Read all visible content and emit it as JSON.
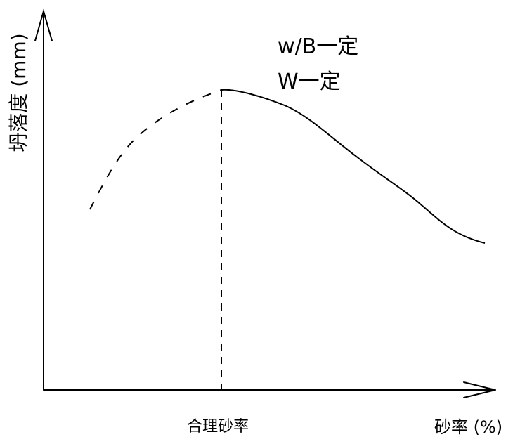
{
  "chart_data": {
    "type": "line",
    "title": "",
    "xlabel": "砂率 (%)",
    "ylabel": "坍落度 (mm)",
    "x_tick_labels": [
      "合理砂率"
    ],
    "annotations": [
      "w/B一定",
      "W一定"
    ],
    "grid": false,
    "legend": "none"
  }
}
